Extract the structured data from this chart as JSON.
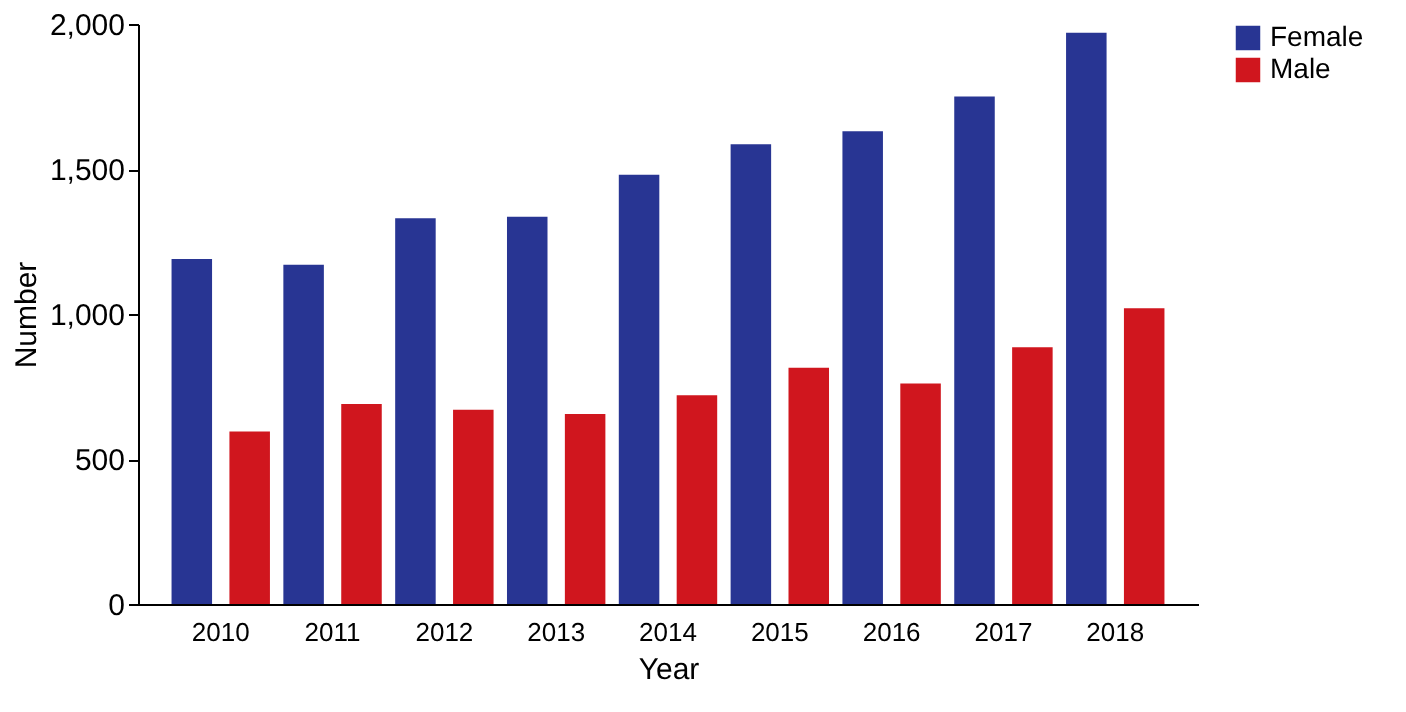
{
  "chart_data": {
    "type": "bar",
    "xlabel": "Year",
    "ylabel": "Number",
    "categories": [
      "2010",
      "2011",
      "2012",
      "2013",
      "2014",
      "2015",
      "2016",
      "2017",
      "2018"
    ],
    "series": [
      {
        "name": "Female",
        "color": "#283593",
        "values": [
          1190,
          1170,
          1330,
          1335,
          1480,
          1585,
          1630,
          1750,
          1970
        ]
      },
      {
        "name": "Male",
        "color": "#d0161e",
        "values": [
          595,
          690,
          670,
          655,
          720,
          815,
          760,
          885,
          1020
        ]
      }
    ],
    "ylim": [
      0,
      2000
    ],
    "yticks": [
      {
        "value": 0,
        "label": "0"
      },
      {
        "value": 500,
        "label": "500"
      },
      {
        "value": 1000,
        "label": "1,000"
      },
      {
        "value": 1500,
        "label": "1,500"
      },
      {
        "value": 2000,
        "label": "2,000"
      }
    ],
    "grid": false,
    "legend": "right"
  }
}
